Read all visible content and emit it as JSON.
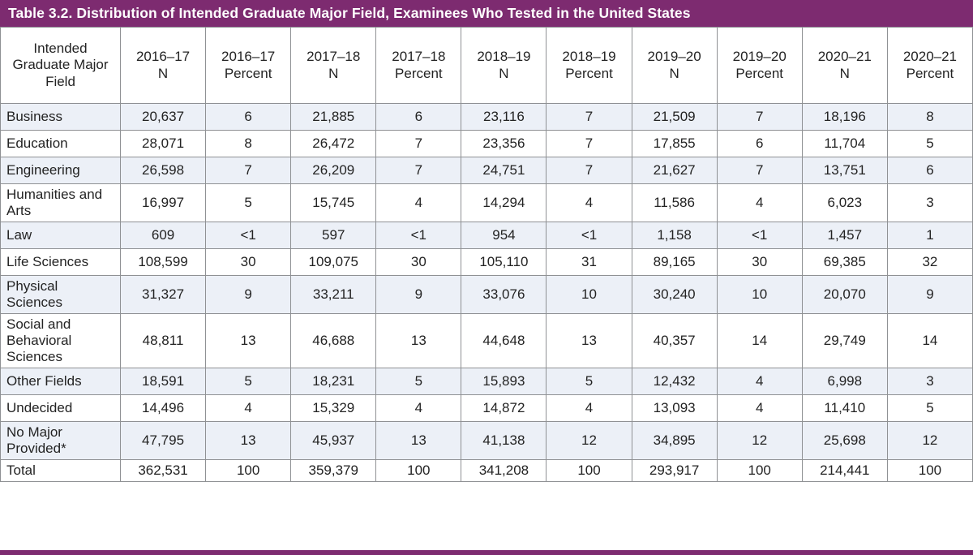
{
  "title": "Table 3.2. Distribution of Intended Graduate Major Field, Examinees Who Tested in the United States",
  "colors": {
    "accent_purple": "#7d2b70",
    "row_shade": "#ecf0f7",
    "border_gray": "#8f9194",
    "title_text": "#ffffff"
  },
  "header": {
    "row_header": "Intended Graduate Major Field",
    "columns": [
      {
        "year": "2016–17",
        "measure": "N"
      },
      {
        "year": "2016–17",
        "measure": "Percent"
      },
      {
        "year": "2017–18",
        "measure": "N"
      },
      {
        "year": "2017–18",
        "measure": "Percent"
      },
      {
        "year": "2018–19",
        "measure": "N"
      },
      {
        "year": "2018–19",
        "measure": "Percent"
      },
      {
        "year": "2019–20",
        "measure": "N"
      },
      {
        "year": "2019–20",
        "measure": "Percent"
      },
      {
        "year": "2020–21",
        "measure": "N"
      },
      {
        "year": "2020–21",
        "measure": "Percent"
      }
    ]
  },
  "rows": [
    {
      "label": "Business",
      "values": [
        "20,637",
        "6",
        "21,885",
        "6",
        "23,116",
        "7",
        "21,509",
        "7",
        "18,196",
        "8"
      ]
    },
    {
      "label": "Education",
      "values": [
        "28,071",
        "8",
        "26,472",
        "7",
        "23,356",
        "7",
        "17,855",
        "6",
        "11,704",
        "5"
      ]
    },
    {
      "label": "Engineering",
      "values": [
        "26,598",
        "7",
        "26,209",
        "7",
        "24,751",
        "7",
        "21,627",
        "7",
        "13,751",
        "6"
      ]
    },
    {
      "label": "Humanities and Arts",
      "values": [
        "16,997",
        "5",
        "15,745",
        "4",
        "14,294",
        "4",
        "11,586",
        "4",
        "6,023",
        "3"
      ]
    },
    {
      "label": "Law",
      "values": [
        "609",
        "<1",
        "597",
        "<1",
        "954",
        "<1",
        "1,158",
        "<1",
        "1,457",
        "1"
      ]
    },
    {
      "label": "Life Sciences",
      "values": [
        "108,599",
        "30",
        "109,075",
        "30",
        "105,110",
        "31",
        "89,165",
        "30",
        "69,385",
        "32"
      ]
    },
    {
      "label": "Physical Sciences",
      "values": [
        "31,327",
        "9",
        "33,211",
        "9",
        "33,076",
        "10",
        "30,240",
        "10",
        "20,070",
        "9"
      ]
    },
    {
      "label": "Social and Behavioral Sciences",
      "values": [
        "48,811",
        "13",
        "46,688",
        "13",
        "44,648",
        "13",
        "40,357",
        "14",
        "29,749",
        "14"
      ]
    },
    {
      "label": "Other Fields",
      "values": [
        "18,591",
        "5",
        "18,231",
        "5",
        "15,893",
        "5",
        "12,432",
        "4",
        "6,998",
        "3"
      ]
    },
    {
      "label": "Undecided",
      "values": [
        "14,496",
        "4",
        "15,329",
        "4",
        "14,872",
        "4",
        "13,093",
        "4",
        "11,410",
        "5"
      ]
    },
    {
      "label": "No Major Provided*",
      "values": [
        "47,795",
        "13",
        "45,937",
        "13",
        "41,138",
        "12",
        "34,895",
        "12",
        "25,698",
        "12"
      ]
    },
    {
      "label": "Total",
      "values": [
        "362,531",
        "100",
        "359,379",
        "100",
        "341,208",
        "100",
        "293,917",
        "100",
        "214,441",
        "100"
      ]
    }
  ]
}
